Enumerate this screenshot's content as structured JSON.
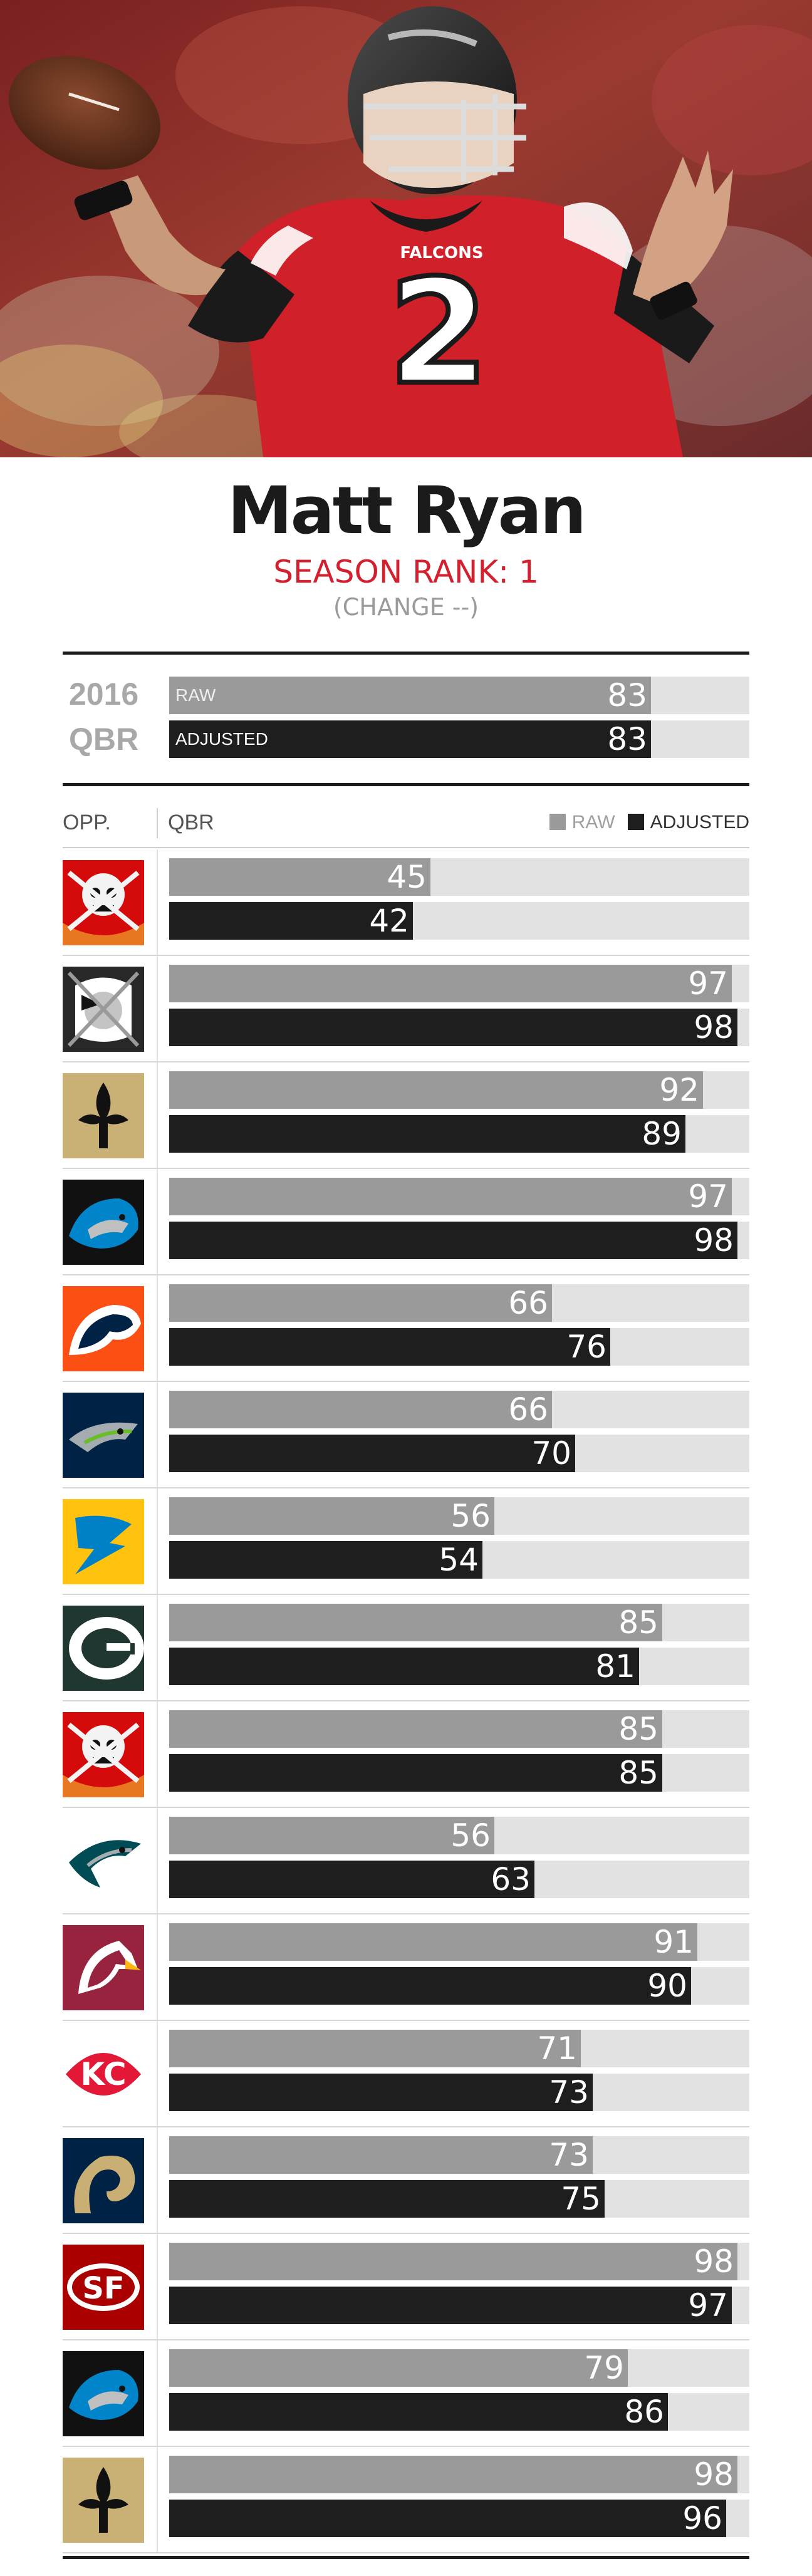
{
  "player": {
    "name": "Matt Ryan",
    "season_rank": "SEASON RANK: 1",
    "change": "(CHANGE --)"
  },
  "photo": {
    "jersey_text": "FALCONS",
    "jersey_number": "2"
  },
  "season": {
    "year": "2016",
    "metric": "QBR",
    "raw_label": "RAW",
    "adjusted_label": "ADJUSTED",
    "raw": 83,
    "adjusted": 83
  },
  "table": {
    "opp_header": "OPP.",
    "qbr_header": "QBR",
    "legend_raw": "RAW",
    "legend_adjusted": "ADJUSTED"
  },
  "colors": {
    "raw": "#9a9a9a",
    "adjusted": "#1e1e1e",
    "track": "#e2e2e2",
    "rank": "#d3202f"
  },
  "chart_data": {
    "type": "bar",
    "orientation": "horizontal",
    "xlim": [
      0,
      100
    ],
    "categories": [
      "Buccaneers",
      "Raiders",
      "Saints",
      "Panthers",
      "Broncos",
      "Seahawks",
      "Chargers",
      "Packers",
      "Buccaneers",
      "Eagles",
      "Cardinals",
      "Chiefs",
      "Rams",
      "49ers",
      "Panthers",
      "Saints"
    ],
    "logo_icons": [
      "buccaneers-logo-icon",
      "raiders-logo-icon",
      "saints-logo-icon",
      "panthers-logo-icon",
      "broncos-logo-icon",
      "seahawks-logo-icon",
      "chargers-logo-icon",
      "packers-logo-icon",
      "buccaneers-logo-icon",
      "eagles-logo-icon",
      "cardinals-logo-icon",
      "chiefs-logo-icon",
      "rams-logo-icon",
      "49ers-logo-icon",
      "panthers-logo-icon",
      "saints-logo-icon"
    ],
    "series": [
      {
        "name": "RAW",
        "values": [
          45,
          97,
          92,
          97,
          66,
          66,
          56,
          85,
          85,
          56,
          91,
          71,
          73,
          98,
          79,
          98
        ]
      },
      {
        "name": "ADJUSTED",
        "values": [
          42,
          98,
          89,
          98,
          76,
          70,
          54,
          81,
          85,
          63,
          90,
          73,
          75,
          97,
          86,
          96
        ]
      }
    ]
  }
}
